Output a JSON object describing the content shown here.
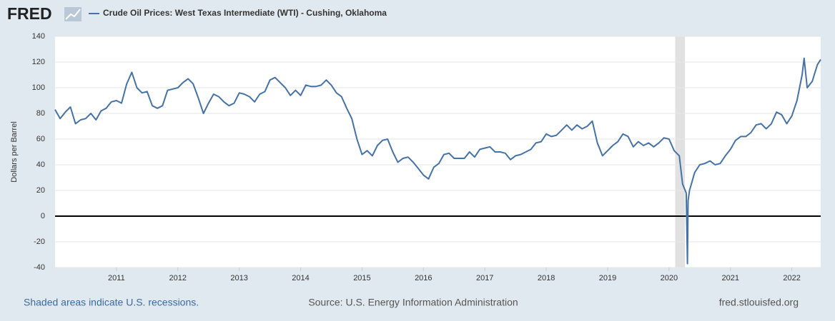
{
  "logo": "FRED",
  "chart_data": {
    "type": "line",
    "ylabel": "Dollars per Barrel",
    "x": [
      2010,
      2010.083,
      2010.167,
      2010.25,
      2010.333,
      2010.417,
      2010.5,
      2010.583,
      2010.667,
      2010.75,
      2010.833,
      2010.917,
      2011,
      2011.083,
      2011.167,
      2011.25,
      2011.333,
      2011.417,
      2011.5,
      2011.583,
      2011.667,
      2011.75,
      2011.833,
      2011.917,
      2012,
      2012.083,
      2012.167,
      2012.25,
      2012.333,
      2012.417,
      2012.5,
      2012.583,
      2012.667,
      2012.75,
      2012.833,
      2012.917,
      2013,
      2013.083,
      2013.167,
      2013.25,
      2013.333,
      2013.417,
      2013.5,
      2013.583,
      2013.667,
      2013.75,
      2013.833,
      2013.917,
      2014,
      2014.083,
      2014.167,
      2014.25,
      2014.333,
      2014.417,
      2014.5,
      2014.583,
      2014.667,
      2014.75,
      2014.833,
      2014.917,
      2015,
      2015.083,
      2015.167,
      2015.25,
      2015.333,
      2015.417,
      2015.5,
      2015.583,
      2015.667,
      2015.75,
      2015.833,
      2015.917,
      2016,
      2016.083,
      2016.167,
      2016.25,
      2016.333,
      2016.417,
      2016.5,
      2016.583,
      2016.667,
      2016.75,
      2016.833,
      2016.917,
      2017,
      2017.083,
      2017.167,
      2017.25,
      2017.333,
      2017.417,
      2017.5,
      2017.583,
      2017.667,
      2017.75,
      2017.833,
      2017.917,
      2018,
      2018.083,
      2018.167,
      2018.25,
      2018.333,
      2018.417,
      2018.5,
      2018.583,
      2018.667,
      2018.75,
      2018.833,
      2018.917,
      2019,
      2019.083,
      2019.167,
      2019.25,
      2019.333,
      2019.417,
      2019.5,
      2019.583,
      2019.667,
      2019.75,
      2019.833,
      2019.917,
      2020,
      2020.083,
      2020.167,
      2020.22,
      2020.28,
      2020.3,
      2020.31,
      2020.333,
      2020.417,
      2020.5,
      2020.583,
      2020.667,
      2020.75,
      2020.833,
      2020.917,
      2021,
      2021.083,
      2021.167,
      2021.25,
      2021.333,
      2021.417,
      2021.5,
      2021.583,
      2021.667,
      2021.75,
      2021.833,
      2021.917,
      2022,
      2022.083,
      2022.167,
      2022.2,
      2022.25,
      2022.333,
      2022.417,
      2022.47
    ],
    "series": [
      {
        "name": "Crude Oil Prices: West Texas Intermediate (WTI) - Cushing, Oklahoma",
        "color": "#4572a7",
        "values": [
          83,
          76,
          81,
          85,
          72,
          75,
          76,
          80,
          75,
          82,
          84,
          89,
          90,
          88,
          103,
          112,
          100,
          96,
          97,
          86,
          84,
          86,
          98,
          99,
          100,
          104,
          107,
          103,
          92,
          80,
          88,
          95,
          93,
          89,
          86,
          88,
          96,
          95,
          93,
          89,
          95,
          97,
          106,
          108,
          104,
          100,
          94,
          98,
          94,
          102,
          101,
          101,
          102,
          106,
          102,
          96,
          93,
          84,
          76,
          60,
          48,
          51,
          47,
          55,
          59,
          60,
          50,
          42,
          45,
          46,
          42,
          37,
          32,
          29,
          38,
          41,
          48,
          49,
          45,
          45,
          45,
          50,
          46,
          52,
          53,
          54,
          50,
          50,
          49,
          44,
          47,
          48,
          50,
          52,
          57,
          58,
          64,
          62,
          63,
          67,
          71,
          67,
          71,
          68,
          70,
          74,
          57,
          47,
          51,
          55,
          58,
          64,
          62,
          54,
          58,
          55,
          57,
          54,
          57,
          61,
          60,
          51,
          47,
          25,
          18,
          -37,
          12,
          20,
          34,
          40,
          41,
          43,
          40,
          41,
          47,
          52,
          59,
          62,
          62,
          65,
          71,
          72,
          68,
          72,
          81,
          79,
          72,
          78,
          90,
          110,
          123,
          100,
          105,
          118,
          122
        ]
      }
    ],
    "xlim": [
      2010,
      2022.47
    ],
    "xticks": [
      2011,
      2012,
      2013,
      2014,
      2015,
      2016,
      2017,
      2018,
      2019,
      2020,
      2021,
      2022
    ],
    "ylim": [
      -40,
      140
    ],
    "yticks": [
      -40,
      -20,
      0,
      20,
      40,
      60,
      80,
      100,
      120,
      140
    ],
    "grid": true,
    "shaded": [
      [
        2020.1,
        2020.26
      ]
    ],
    "shade_color": "#e1e1e1",
    "footer": {
      "left": "Shaded areas indicate U.S. recessions.",
      "center": "Source: U.S. Energy Information Administration",
      "right": "fred.stlouisfed.org"
    }
  }
}
